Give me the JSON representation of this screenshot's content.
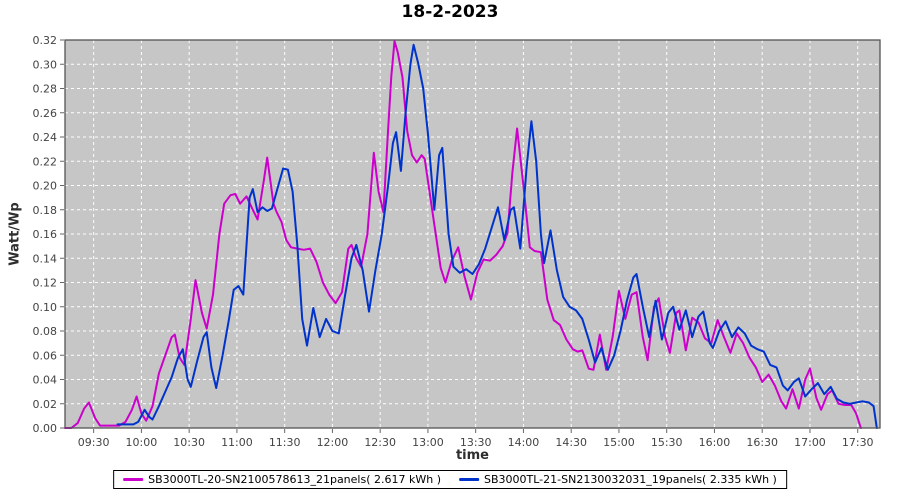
{
  "title": "18-2-2023",
  "y_axis": {
    "label": "Watt/Wp"
  },
  "x_axis": {
    "label": "time"
  },
  "legend": [
    {
      "label": "SB3000TL-20-SN2100578613_21panels( 2.617 kWh )",
      "color": "#CC00CC"
    },
    {
      "label": "SB3000TL-21-SN2130032031_19panels( 2.335 kWh )",
      "color": "#0033CC"
    }
  ],
  "colors": {
    "plot_background": "#C6C6C6",
    "grid": "#FFFFFF",
    "plot_border": "#545454",
    "tick_text": "#444444",
    "series_pink": "#CC00CC",
    "series_blue": "#0033CC"
  },
  "chart_data": {
    "type": "line",
    "title": "18-2-2023",
    "xlabel": "time",
    "ylabel": "Watt/Wp",
    "ylim": [
      0,
      0.32
    ],
    "xlim_minutes": [
      552,
      1064
    ],
    "grid": "white dashed, on",
    "legend_position": "bottom-center boxed",
    "plot_bg": "#C6C6C6",
    "grid_color": "#FFFFFF",
    "y_tick_labels": [
      "0.00",
      "0.02",
      "0.04",
      "0.06",
      "0.08",
      "0.10",
      "0.12",
      "0.14",
      "0.16",
      "0.18",
      "0.20",
      "0.22",
      "0.24",
      "0.26",
      "0.28",
      "0.30",
      "0.32"
    ],
    "x_ticks": [
      "09:30",
      "10:00",
      "10:30",
      "11:00",
      "11:30",
      "12:00",
      "12:30",
      "13:00",
      "13:30",
      "14:00",
      "14:30",
      "15:00",
      "15:30",
      "16:00",
      "16:30",
      "17:00",
      "17:30"
    ],
    "series": [
      {
        "name": "SB3000TL-20-SN2100578613_21panels( 2.617 kWh )",
        "color": "#CC00CC",
        "points": [
          [
            "09:12",
            0.0
          ],
          [
            "09:16",
            0.0
          ],
          [
            "09:20",
            0.004
          ],
          [
            "09:24",
            0.016
          ],
          [
            "09:27",
            0.021
          ],
          [
            "09:31",
            0.008
          ],
          [
            "09:34",
            0.002
          ],
          [
            "09:40",
            0.002
          ],
          [
            "09:46",
            0.002
          ],
          [
            "09:50",
            0.005
          ],
          [
            "09:54",
            0.015
          ],
          [
            "09:57",
            0.026
          ],
          [
            "10:00",
            0.012
          ],
          [
            "10:03",
            0.006
          ],
          [
            "10:07",
            0.018
          ],
          [
            "10:11",
            0.045
          ],
          [
            "10:15",
            0.06
          ],
          [
            "10:19",
            0.075
          ],
          [
            "10:21",
            0.077
          ],
          [
            "10:24",
            0.058
          ],
          [
            "10:27",
            0.052
          ],
          [
            "10:31",
            0.09
          ],
          [
            "10:34",
            0.122
          ],
          [
            "10:38",
            0.095
          ],
          [
            "10:41",
            0.082
          ],
          [
            "10:45",
            0.11
          ],
          [
            "10:49",
            0.16
          ],
          [
            "10:52",
            0.185
          ],
          [
            "10:56",
            0.192
          ],
          [
            "10:59",
            0.193
          ],
          [
            "11:02",
            0.185
          ],
          [
            "11:06",
            0.191
          ],
          [
            "11:10",
            0.18
          ],
          [
            "11:13",
            0.172
          ],
          [
            "11:17",
            0.205
          ],
          [
            "11:19",
            0.223
          ],
          [
            "11:23",
            0.185
          ],
          [
            "11:25",
            0.178
          ],
          [
            "11:28",
            0.17
          ],
          [
            "11:31",
            0.155
          ],
          [
            "11:34",
            0.149
          ],
          [
            "11:38",
            0.148
          ],
          [
            "11:42",
            0.147
          ],
          [
            "11:46",
            0.148
          ],
          [
            "11:50",
            0.137
          ],
          [
            "11:54",
            0.12
          ],
          [
            "11:58",
            0.11
          ],
          [
            "12:02",
            0.103
          ],
          [
            "12:06",
            0.112
          ],
          [
            "12:10",
            0.148
          ],
          [
            "12:12",
            0.151
          ],
          [
            "12:15",
            0.14
          ],
          [
            "12:18",
            0.133
          ],
          [
            "12:22",
            0.16
          ],
          [
            "12:26",
            0.227
          ],
          [
            "12:29",
            0.195
          ],
          [
            "12:32",
            0.178
          ],
          [
            "12:35",
            0.246
          ],
          [
            "12:37",
            0.29
          ],
          [
            "12:39",
            0.319
          ],
          [
            "12:41",
            0.31
          ],
          [
            "12:44",
            0.289
          ],
          [
            "12:47",
            0.245
          ],
          [
            "12:50",
            0.225
          ],
          [
            "12:53",
            0.219
          ],
          [
            "12:56",
            0.225
          ],
          [
            "12:58",
            0.222
          ],
          [
            "13:01",
            0.195
          ],
          [
            "13:04",
            0.168
          ],
          [
            "13:08",
            0.132
          ],
          [
            "13:11",
            0.12
          ],
          [
            "13:15",
            0.138
          ],
          [
            "13:19",
            0.149
          ],
          [
            "13:23",
            0.125
          ],
          [
            "13:27",
            0.106
          ],
          [
            "13:31",
            0.128
          ],
          [
            "13:35",
            0.139
          ],
          [
            "13:39",
            0.138
          ],
          [
            "13:43",
            0.143
          ],
          [
            "13:47",
            0.15
          ],
          [
            "13:50",
            0.161
          ],
          [
            "13:53",
            0.21
          ],
          [
            "13:56",
            0.247
          ],
          [
            "14:00",
            0.2
          ],
          [
            "14:04",
            0.149
          ],
          [
            "14:07",
            0.146
          ],
          [
            "14:11",
            0.145
          ],
          [
            "14:15",
            0.106
          ],
          [
            "14:19",
            0.089
          ],
          [
            "14:23",
            0.085
          ],
          [
            "14:27",
            0.073
          ],
          [
            "14:31",
            0.065
          ],
          [
            "14:34",
            0.063
          ],
          [
            "14:37",
            0.064
          ],
          [
            "14:41",
            0.049
          ],
          [
            "14:44",
            0.048
          ],
          [
            "14:48",
            0.077
          ],
          [
            "14:52",
            0.048
          ],
          [
            "14:56",
            0.075
          ],
          [
            "15:00",
            0.113
          ],
          [
            "15:04",
            0.09
          ],
          [
            "15:08",
            0.11
          ],
          [
            "15:11",
            0.112
          ],
          [
            "15:15",
            0.075
          ],
          [
            "15:18",
            0.056
          ],
          [
            "15:22",
            0.1
          ],
          [
            "15:25",
            0.107
          ],
          [
            "15:29",
            0.075
          ],
          [
            "15:32",
            0.062
          ],
          [
            "15:36",
            0.095
          ],
          [
            "15:38",
            0.097
          ],
          [
            "15:42",
            0.064
          ],
          [
            "15:46",
            0.091
          ],
          [
            "15:50",
            0.087
          ],
          [
            "15:54",
            0.074
          ],
          [
            "15:58",
            0.07
          ],
          [
            "16:02",
            0.089
          ],
          [
            "16:06",
            0.075
          ],
          [
            "16:10",
            0.062
          ],
          [
            "16:14",
            0.078
          ],
          [
            "16:18",
            0.07
          ],
          [
            "16:22",
            0.058
          ],
          [
            "16:26",
            0.05
          ],
          [
            "16:30",
            0.038
          ],
          [
            "16:34",
            0.044
          ],
          [
            "16:38",
            0.035
          ],
          [
            "16:42",
            0.022
          ],
          [
            "16:45",
            0.016
          ],
          [
            "16:49",
            0.032
          ],
          [
            "16:53",
            0.016
          ],
          [
            "16:57",
            0.04
          ],
          [
            "17:00",
            0.049
          ],
          [
            "17:04",
            0.025
          ],
          [
            "17:07",
            0.015
          ],
          [
            "17:11",
            0.028
          ],
          [
            "17:14",
            0.031
          ],
          [
            "17:18",
            0.02
          ],
          [
            "17:22",
            0.019
          ],
          [
            "17:26",
            0.019
          ],
          [
            "17:29",
            0.012
          ],
          [
            "17:32",
            0.0
          ]
        ]
      },
      {
        "name": "SB3000TL-21-SN2130032031_19panels( 2.335 kWh )",
        "color": "#0033CC",
        "points": [
          [
            "09:45",
            0.003
          ],
          [
            "09:50",
            0.003
          ],
          [
            "09:55",
            0.003
          ],
          [
            "09:58",
            0.005
          ],
          [
            "10:00",
            0.01
          ],
          [
            "10:02",
            0.015
          ],
          [
            "10:05",
            0.009
          ],
          [
            "10:07",
            0.007
          ],
          [
            "10:11",
            0.018
          ],
          [
            "10:15",
            0.03
          ],
          [
            "10:19",
            0.042
          ],
          [
            "10:23",
            0.058
          ],
          [
            "10:26",
            0.065
          ],
          [
            "10:29",
            0.04
          ],
          [
            "10:31",
            0.034
          ],
          [
            "10:35",
            0.055
          ],
          [
            "10:39",
            0.075
          ],
          [
            "10:41",
            0.079
          ],
          [
            "10:44",
            0.05
          ],
          [
            "10:47",
            0.033
          ],
          [
            "10:51",
            0.06
          ],
          [
            "10:55",
            0.09
          ],
          [
            "10:58",
            0.114
          ],
          [
            "11:01",
            0.117
          ],
          [
            "11:04",
            0.11
          ],
          [
            "11:08",
            0.19
          ],
          [
            "11:10",
            0.197
          ],
          [
            "11:13",
            0.178
          ],
          [
            "11:16",
            0.182
          ],
          [
            "11:19",
            0.179
          ],
          [
            "11:22",
            0.181
          ],
          [
            "11:26",
            0.2
          ],
          [
            "11:29",
            0.214
          ],
          [
            "11:32",
            0.213
          ],
          [
            "11:35",
            0.195
          ],
          [
            "11:38",
            0.15
          ],
          [
            "11:41",
            0.09
          ],
          [
            "11:44",
            0.068
          ],
          [
            "11:48",
            0.099
          ],
          [
            "11:52",
            0.075
          ],
          [
            "11:56",
            0.09
          ],
          [
            "12:00",
            0.08
          ],
          [
            "12:04",
            0.078
          ],
          [
            "12:08",
            0.11
          ],
          [
            "12:12",
            0.14
          ],
          [
            "12:15",
            0.151
          ],
          [
            "12:19",
            0.13
          ],
          [
            "12:23",
            0.096
          ],
          [
            "12:27",
            0.13
          ],
          [
            "12:31",
            0.16
          ],
          [
            "12:35",
            0.2
          ],
          [
            "12:38",
            0.235
          ],
          [
            "12:40",
            0.244
          ],
          [
            "12:43",
            0.212
          ],
          [
            "12:46",
            0.26
          ],
          [
            "12:49",
            0.3
          ],
          [
            "12:51",
            0.316
          ],
          [
            "12:54",
            0.3
          ],
          [
            "12:57",
            0.28
          ],
          [
            "13:00",
            0.243
          ],
          [
            "13:04",
            0.18
          ],
          [
            "13:07",
            0.225
          ],
          [
            "13:09",
            0.231
          ],
          [
            "13:13",
            0.16
          ],
          [
            "13:16",
            0.133
          ],
          [
            "13:20",
            0.128
          ],
          [
            "13:24",
            0.131
          ],
          [
            "13:28",
            0.127
          ],
          [
            "13:32",
            0.135
          ],
          [
            "13:36",
            0.148
          ],
          [
            "13:40",
            0.165
          ],
          [
            "13:44",
            0.182
          ],
          [
            "13:48",
            0.155
          ],
          [
            "13:52",
            0.18
          ],
          [
            "13:54",
            0.182
          ],
          [
            "13:58",
            0.148
          ],
          [
            "14:02",
            0.215
          ],
          [
            "14:05",
            0.253
          ],
          [
            "14:08",
            0.22
          ],
          [
            "14:11",
            0.16
          ],
          [
            "14:13",
            0.136
          ],
          [
            "14:17",
            0.163
          ],
          [
            "14:21",
            0.13
          ],
          [
            "14:25",
            0.108
          ],
          [
            "14:29",
            0.1
          ],
          [
            "14:33",
            0.097
          ],
          [
            "14:37",
            0.09
          ],
          [
            "14:41",
            0.073
          ],
          [
            "14:45",
            0.054
          ],
          [
            "14:49",
            0.066
          ],
          [
            "14:53",
            0.048
          ],
          [
            "14:57",
            0.06
          ],
          [
            "15:01",
            0.08
          ],
          [
            "15:05",
            0.105
          ],
          [
            "15:09",
            0.124
          ],
          [
            "15:11",
            0.127
          ],
          [
            "15:15",
            0.1
          ],
          [
            "15:19",
            0.075
          ],
          [
            "15:23",
            0.105
          ],
          [
            "15:27",
            0.073
          ],
          [
            "15:31",
            0.095
          ],
          [
            "15:34",
            0.1
          ],
          [
            "15:38",
            0.081
          ],
          [
            "15:42",
            0.097
          ],
          [
            "15:46",
            0.075
          ],
          [
            "15:50",
            0.092
          ],
          [
            "15:53",
            0.096
          ],
          [
            "15:57",
            0.07
          ],
          [
            "15:59",
            0.066
          ],
          [
            "16:03",
            0.08
          ],
          [
            "16:07",
            0.088
          ],
          [
            "16:11",
            0.075
          ],
          [
            "16:15",
            0.083
          ],
          [
            "16:19",
            0.078
          ],
          [
            "16:23",
            0.068
          ],
          [
            "16:27",
            0.065
          ],
          [
            "16:31",
            0.063
          ],
          [
            "16:35",
            0.052
          ],
          [
            "16:39",
            0.05
          ],
          [
            "16:43",
            0.035
          ],
          [
            "16:46",
            0.031
          ],
          [
            "16:50",
            0.038
          ],
          [
            "16:53",
            0.041
          ],
          [
            "16:57",
            0.026
          ],
          [
            "17:01",
            0.032
          ],
          [
            "17:05",
            0.037
          ],
          [
            "17:09",
            0.028
          ],
          [
            "17:13",
            0.034
          ],
          [
            "17:17",
            0.024
          ],
          [
            "17:21",
            0.021
          ],
          [
            "17:25",
            0.02
          ],
          [
            "17:29",
            0.021
          ],
          [
            "17:33",
            0.022
          ],
          [
            "17:37",
            0.021
          ],
          [
            "17:40",
            0.018
          ],
          [
            "17:42",
            0.0
          ]
        ]
      }
    ]
  }
}
